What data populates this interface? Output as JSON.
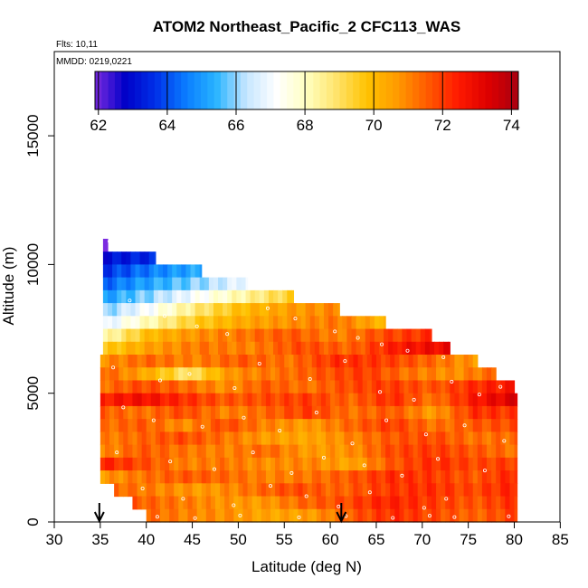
{
  "chart_data": {
    "type": "heatmap",
    "title": "ATOM2 Northeast_Pacific_2 CFC113_WAS",
    "flights_label": "Flts: 10,11",
    "date_label": "MMDD: 0219,0221",
    "xlabel": "Latitude (deg N)",
    "ylabel": "Altitude (m)",
    "xlim": [
      30,
      85
    ],
    "ylim": [
      0,
      17500
    ],
    "x_ticks": [
      "30",
      "35",
      "40",
      "45",
      "50",
      "55",
      "60",
      "65",
      "70",
      "75",
      "80",
      "85"
    ],
    "y_ticks": [
      "0",
      "5000",
      "10000",
      "15000"
    ],
    "colorbar": {
      "range": [
        61.9,
        74.2
      ],
      "ticks": [
        "62",
        "64",
        "66",
        "68",
        "70",
        "72",
        "74"
      ],
      "colors": [
        "#7b2be0",
        "#0000c8",
        "#0030e8",
        "#0a7cff",
        "#28b4ff",
        "#c6e6ff",
        "#ffffff",
        "#ffffc0",
        "#ffe36a",
        "#ffc200",
        "#ff9a00",
        "#ff5a00",
        "#ff1a00",
        "#dd0000",
        "#a80010"
      ]
    },
    "arrows_lat": [
      34.9,
      61.2
    ],
    "grid": false,
    "legend": "colorbar-top",
    "rows": [
      {
        "alt": 10750,
        "start": 35.3,
        "end": 35.8,
        "values": [
          62.2,
          62.2
        ]
      },
      {
        "alt": 10250,
        "start": 35.3,
        "end": 41.0,
        "values": [
          63.0,
          63.2,
          63.4,
          63.5
        ]
      },
      {
        "alt": 9750,
        "start": 35.3,
        "end": 46.0,
        "values": [
          63.6,
          64.1,
          64.6,
          65.0,
          65.3
        ]
      },
      {
        "alt": 9250,
        "start": 35.3,
        "end": 51.0,
        "values": [
          64.2,
          65.0,
          65.6,
          66.2,
          67.0
        ]
      },
      {
        "alt": 8750,
        "start": 35.3,
        "end": 56.0,
        "values": [
          65.0,
          66.0,
          67.2,
          68.4,
          69.5
        ]
      },
      {
        "alt": 8250,
        "start": 35.3,
        "end": 61.0,
        "values": [
          65.8,
          67.2,
          68.8,
          70.0,
          70.6,
          71.0
        ]
      },
      {
        "alt": 7750,
        "start": 35.3,
        "end": 66.0,
        "values": [
          66.6,
          68.2,
          69.6,
          70.4,
          70.8,
          71.2,
          70.0
        ]
      },
      {
        "alt": 7250,
        "start": 35.3,
        "end": 71.0,
        "values": [
          68.0,
          70.0,
          70.8,
          71.2,
          71.6,
          71.0,
          71.8,
          72.2
        ]
      },
      {
        "alt": 6750,
        "start": 35.3,
        "end": 73.0,
        "values": [
          69.5,
          70.6,
          71.2,
          71.0,
          71.8,
          71.4,
          72.6,
          73.0
        ]
      },
      {
        "alt": 6250,
        "start": 35.0,
        "end": 76.0,
        "values": [
          70.8,
          71.4,
          71.0,
          71.6,
          71.2,
          72.2,
          72.0,
          71.4,
          70.6
        ]
      },
      {
        "alt": 5750,
        "start": 35.0,
        "end": 78.0,
        "values": [
          71.6,
          70.4,
          68.8,
          70.8,
          71.2,
          71.6,
          72.0,
          71.2,
          70.8,
          71.4
        ]
      },
      {
        "alt": 5250,
        "start": 35.0,
        "end": 80.0,
        "values": [
          71.2,
          71.8,
          71.4,
          70.8,
          71.6,
          71.2,
          71.8,
          72.0,
          71.6,
          72.2,
          72.6
        ]
      },
      {
        "alt": 4750,
        "start": 35.0,
        "end": 80.3,
        "values": [
          72.4,
          72.8,
          72.2,
          71.6,
          71.8,
          72.0,
          71.4,
          72.2,
          71.2,
          72.6,
          73.4
        ]
      },
      {
        "alt": 4250,
        "start": 35.0,
        "end": 80.3,
        "values": [
          71.6,
          71.2,
          71.8,
          71.0,
          71.4,
          72.0,
          71.2,
          71.6,
          70.6,
          72.2,
          72.0
        ]
      },
      {
        "alt": 3750,
        "start": 35.0,
        "end": 80.3,
        "values": [
          71.2,
          71.6,
          70.8,
          71.8,
          71.0,
          70.6,
          71.4,
          72.0,
          71.2,
          71.6,
          71.8
        ]
      },
      {
        "alt": 3250,
        "start": 35.0,
        "end": 80.3,
        "values": [
          71.0,
          71.4,
          71.8,
          71.2,
          70.6,
          70.4,
          71.0,
          71.6,
          71.8,
          71.2,
          71.4
        ]
      },
      {
        "alt": 2750,
        "start": 35.0,
        "end": 80.3,
        "values": [
          70.8,
          71.6,
          71.2,
          71.0,
          71.4,
          70.6,
          70.8,
          71.8,
          72.0,
          71.6,
          71.2
        ]
      },
      {
        "alt": 2250,
        "start": 35.0,
        "end": 80.3,
        "values": [
          72.4,
          71.8,
          71.0,
          71.2,
          70.8,
          71.0,
          70.4,
          71.6,
          72.2,
          71.8,
          72.0
        ]
      },
      {
        "alt": 1750,
        "start": 35.0,
        "end": 80.3,
        "values": [
          70.6,
          71.2,
          71.6,
          71.4,
          71.0,
          71.2,
          71.6,
          72.2,
          72.0,
          71.6,
          72.4
        ]
      },
      {
        "alt": 1250,
        "start": 36.5,
        "end": 80.3,
        "values": [
          71.4,
          71.0,
          70.6,
          71.2,
          71.8,
          71.4,
          72.0,
          72.2,
          71.8,
          72.4
        ]
      },
      {
        "alt": 750,
        "start": 38.5,
        "end": 80.3,
        "values": [
          71.6,
          71.2,
          70.8,
          70.6,
          71.4,
          71.8,
          72.4,
          72.0,
          71.6,
          72.2
        ]
      },
      {
        "alt": 250,
        "start": 40.0,
        "end": 80.3,
        "values": [
          71.4,
          71.0,
          70.8,
          70.4,
          70.6,
          71.6,
          72.2,
          71.8,
          71.4,
          72.0
        ]
      }
    ],
    "samples": [
      {
        "x": 36.0,
        "y": 10900
      },
      {
        "x": 38.2,
        "y": 8600
      },
      {
        "x": 42.0,
        "y": 8000
      },
      {
        "x": 45.5,
        "y": 7600
      },
      {
        "x": 48.8,
        "y": 7300
      },
      {
        "x": 53.2,
        "y": 8300
      },
      {
        "x": 56.2,
        "y": 7900
      },
      {
        "x": 60.5,
        "y": 7400
      },
      {
        "x": 63.0,
        "y": 7150
      },
      {
        "x": 65.6,
        "y": 6900
      },
      {
        "x": 68.4,
        "y": 6650
      },
      {
        "x": 72.3,
        "y": 6400
      },
      {
        "x": 36.4,
        "y": 6000
      },
      {
        "x": 41.5,
        "y": 5500
      },
      {
        "x": 44.7,
        "y": 5750
      },
      {
        "x": 49.6,
        "y": 5200
      },
      {
        "x": 52.3,
        "y": 6150
      },
      {
        "x": 57.8,
        "y": 5550
      },
      {
        "x": 61.6,
        "y": 6250
      },
      {
        "x": 65.4,
        "y": 5050
      },
      {
        "x": 69.1,
        "y": 4750
      },
      {
        "x": 73.2,
        "y": 5450
      },
      {
        "x": 76.2,
        "y": 4950
      },
      {
        "x": 78.5,
        "y": 5250
      },
      {
        "x": 37.5,
        "y": 4450
      },
      {
        "x": 40.8,
        "y": 3950
      },
      {
        "x": 46.1,
        "y": 3700
      },
      {
        "x": 50.6,
        "y": 4050
      },
      {
        "x": 54.5,
        "y": 3550
      },
      {
        "x": 58.5,
        "y": 4250
      },
      {
        "x": 62.4,
        "y": 3050
      },
      {
        "x": 66.1,
        "y": 3950
      },
      {
        "x": 70.4,
        "y": 3400
      },
      {
        "x": 74.6,
        "y": 3750
      },
      {
        "x": 78.9,
        "y": 3150
      },
      {
        "x": 36.8,
        "y": 2700
      },
      {
        "x": 42.6,
        "y": 2350
      },
      {
        "x": 47.4,
        "y": 2050
      },
      {
        "x": 51.6,
        "y": 2700
      },
      {
        "x": 55.8,
        "y": 1900
      },
      {
        "x": 59.3,
        "y": 2500
      },
      {
        "x": 63.7,
        "y": 2200
      },
      {
        "x": 67.8,
        "y": 1800
      },
      {
        "x": 71.7,
        "y": 2450
      },
      {
        "x": 76.8,
        "y": 2000
      },
      {
        "x": 39.6,
        "y": 1300
      },
      {
        "x": 44.0,
        "y": 900
      },
      {
        "x": 49.5,
        "y": 650
      },
      {
        "x": 53.5,
        "y": 1400
      },
      {
        "x": 57.4,
        "y": 1000
      },
      {
        "x": 60.9,
        "y": 600
      },
      {
        "x": 64.3,
        "y": 1150
      },
      {
        "x": 70.2,
        "y": 550
      },
      {
        "x": 72.6,
        "y": 900
      },
      {
        "x": 41.2,
        "y": 200
      },
      {
        "x": 45.3,
        "y": 150
      },
      {
        "x": 50.2,
        "y": 250
      },
      {
        "x": 56.6,
        "y": 180
      },
      {
        "x": 61.7,
        "y": 230
      },
      {
        "x": 66.8,
        "y": 160
      },
      {
        "x": 70.8,
        "y": 240
      },
      {
        "x": 73.5,
        "y": 190
      },
      {
        "x": 79.4,
        "y": 220
      }
    ]
  }
}
